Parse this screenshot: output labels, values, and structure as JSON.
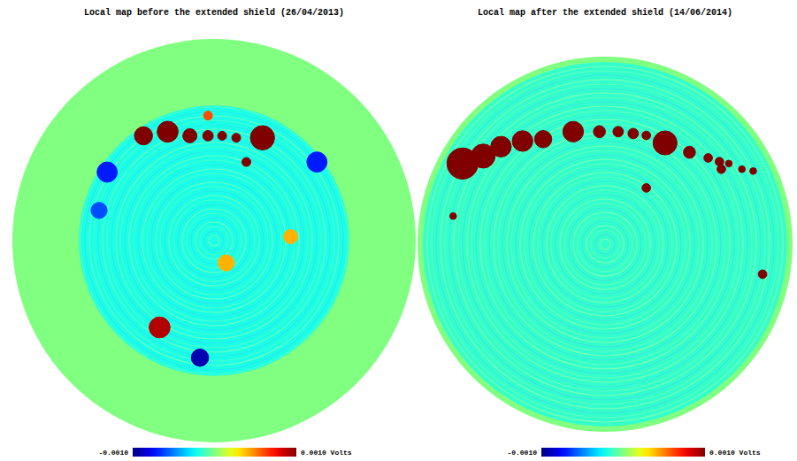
{
  "chart_data": [
    {
      "type": "heatmap",
      "title": "Local map before the extended shield (26/04/2013)",
      "xlim": [
        -1,
        1
      ],
      "ylim": [
        -1,
        1
      ],
      "tick_labels": false,
      "disk_value": 0,
      "field": {
        "radius": 0.67,
        "value": -0.0002
      },
      "sources": {
        "x": [
          -0.35,
          -0.23,
          -0.12,
          -0.03,
          0.04,
          0.11,
          0.24,
          0.16,
          -0.03,
          -0.27,
          -0.07,
          -0.53,
          0.51,
          -0.57,
          0.06,
          0.38
        ],
        "y": [
          0.52,
          0.54,
          0.52,
          0.52,
          0.52,
          0.51,
          0.51,
          0.39,
          0.62,
          -0.43,
          -0.58,
          0.34,
          0.39,
          0.15,
          -0.11,
          0.02
        ],
        "size": [
          0.045,
          0.052,
          0.035,
          0.026,
          0.022,
          0.022,
          0.06,
          0.022,
          0.022,
          0.052,
          0.043,
          0.05,
          0.05,
          0.04,
          0.04,
          0.035
        ],
        "values": [
          0.001,
          0.001,
          0.001,
          0.001,
          0.001,
          0.001,
          0.001,
          0.001,
          0.0006,
          0.0009,
          -0.0009,
          -0.0007,
          -0.0007,
          -0.0006,
          0.0004,
          0.0004
        ]
      },
      "colorbar": {
        "range": [
          -0.001,
          0.001
        ],
        "ticks": [
          {
            "value": -0.001,
            "label": "-0.0010"
          },
          {
            "value": 0.001,
            "label": "0.0010 Volts"
          }
        ]
      }
    },
    {
      "type": "heatmap",
      "title": "Local map after the extended shield (14/06/2014)",
      "xlim": [
        -1,
        1
      ],
      "ylim": [
        -1,
        1
      ],
      "tick_labels": false,
      "disk_value": 0,
      "field": {
        "radius": 0.97,
        "value": -0.00015
      },
      "sources": {
        "x": [
          -0.76,
          -0.65,
          -0.555,
          -0.44,
          -0.33,
          -0.17,
          -0.03,
          0.07,
          0.15,
          0.22,
          0.32,
          0.45,
          0.55,
          0.61,
          0.66,
          0.73,
          0.79,
          0.62,
          0.22,
          -0.81,
          0.84
        ],
        "y": [
          0.43,
          0.47,
          0.52,
          0.55,
          0.56,
          0.6,
          0.6,
          0.6,
          0.59,
          0.58,
          0.54,
          0.49,
          0.46,
          0.44,
          0.43,
          0.4,
          0.39,
          0.4,
          0.3,
          0.15,
          -0.16
        ],
        "size": [
          0.083,
          0.064,
          0.055,
          0.055,
          0.046,
          0.055,
          0.032,
          0.028,
          0.028,
          0.023,
          0.064,
          0.032,
          0.023,
          0.023,
          0.018,
          0.018,
          0.018,
          0.023,
          0.023,
          0.018,
          0.023
        ],
        "values": [
          0.001,
          0.001,
          0.001,
          0.001,
          0.001,
          0.001,
          0.001,
          0.001,
          0.001,
          0.001,
          0.001,
          0.001,
          0.001,
          0.001,
          0.001,
          0.001,
          0.001,
          0.001,
          0.001,
          0.001,
          0.001
        ]
      },
      "colorbar": {
        "range": [
          -0.001,
          0.001
        ],
        "ticks": [
          {
            "value": -0.001,
            "label": "-0.0010"
          },
          {
            "value": 0.001,
            "label": "0.0010 Volts"
          }
        ]
      }
    }
  ]
}
